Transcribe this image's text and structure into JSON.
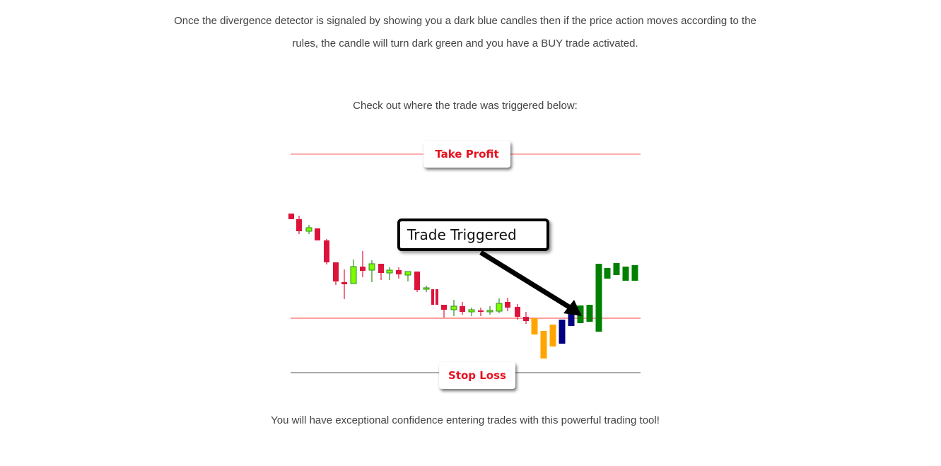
{
  "intro": {
    "line1": "Once the divergence detector is signaled by showing you a dark blue candles then if the price action moves according to the",
    "line2": "rules, the candle will turn dark green and you have a BUY trade activated."
  },
  "check_text": "Check out where the trade was triggered below:",
  "chart_image": {
    "take_profit_label": "Take Profit",
    "stop_loss_label": "Stop Loss",
    "trade_triggered_label": "Trade Triggered",
    "colors": {
      "bear": "#dc143c",
      "bull": "#7cfc00",
      "divergence_down": "#ffa500",
      "divergence_signal": "#000080",
      "buy_active": "#008000",
      "take_profit_line": "#ff5a5a",
      "entry_line": "#ff7f7f",
      "stop_loss_line": "#555555"
    }
  },
  "closing_text": "You will have exceptional confidence entering trades with this powerful trading tool!"
}
